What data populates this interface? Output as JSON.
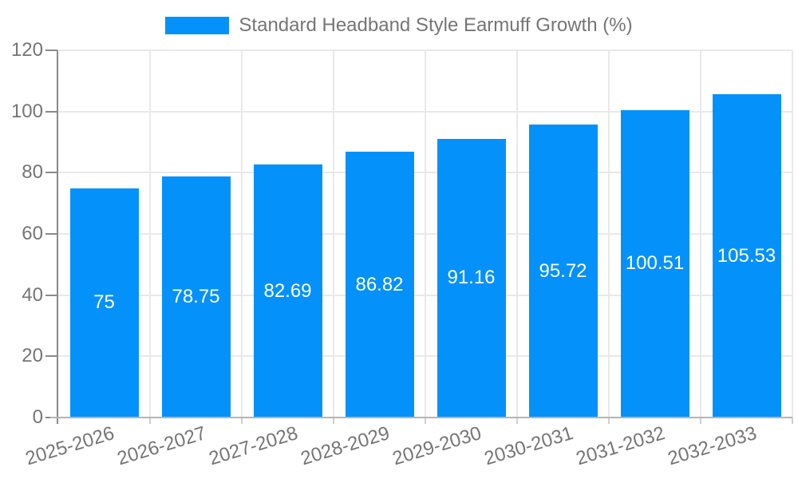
{
  "legend": {
    "label": "Standard Headband Style Earmuff Growth (%)"
  },
  "chart_data": {
    "type": "bar",
    "title": "Standard Headband Style Earmuff Growth (%)",
    "legend_position": "top",
    "categories": [
      "2025-2026",
      "2026-2027",
      "2027-2028",
      "2028-2029",
      "2029-2030",
      "2030-2031",
      "2031-2032",
      "2032-2033"
    ],
    "values": [
      75,
      78.75,
      82.69,
      86.82,
      91.16,
      95.72,
      100.51,
      105.53
    ],
    "value_labels": [
      "75",
      "78.75",
      "82.69",
      "86.82",
      "91.16",
      "95.72",
      "100.51",
      "105.53"
    ],
    "xlabel": "",
    "ylabel": "",
    "ylim": [
      0,
      120
    ],
    "yticks": [
      0,
      20,
      40,
      60,
      80,
      100,
      120
    ],
    "grid": true,
    "colors": {
      "bar": "#0591FA",
      "grid_line": "#e9e9e9",
      "y_axis_line": "#8a8a8a",
      "x_axis_line": "#b5b5b5",
      "y_tick_mark": "#8a8a8a",
      "x_tick_mark": "#cfcfcf",
      "axis_text": "#757575",
      "value_label_text": "#ffffff"
    }
  }
}
